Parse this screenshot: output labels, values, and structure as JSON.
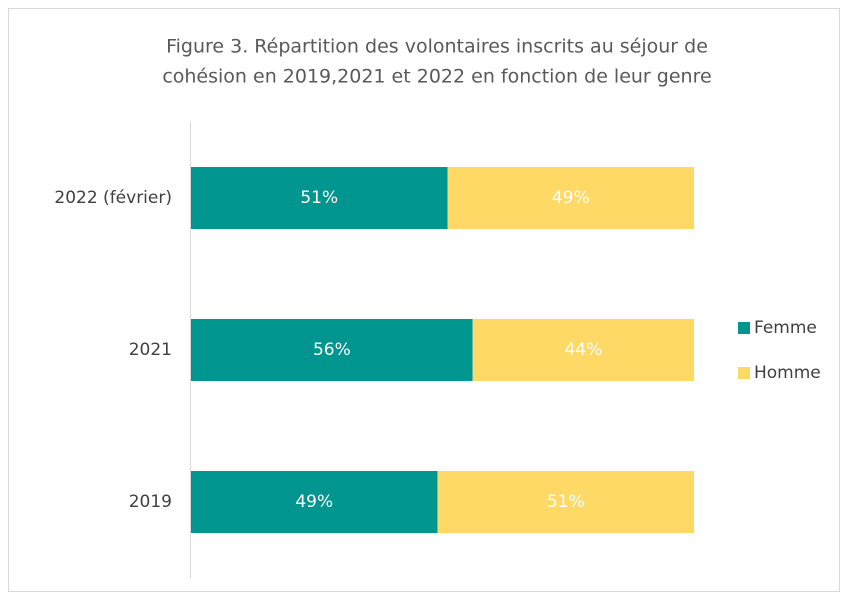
{
  "chart_data": {
    "type": "stacked_barh",
    "title": [
      "Figure 3. Répartition des volontaires inscrits au séjour de",
      "cohésion en 2019,2021 et 2022 en fonction de leur genre"
    ],
    "categories": [
      "2022 (février)",
      "2021",
      "2019"
    ],
    "series": [
      {
        "name": "Femme",
        "color": "#00968f",
        "values": [
          51,
          56,
          49
        ],
        "value_labels": [
          "51%",
          "56%",
          "49%"
        ]
      },
      {
        "name": "Homme",
        "color": "#ffd966",
        "values": [
          49,
          44,
          51
        ],
        "value_labels": [
          "49%",
          "44%",
          "51%"
        ]
      }
    ],
    "xlim": [
      0,
      100
    ],
    "legend": "right"
  }
}
